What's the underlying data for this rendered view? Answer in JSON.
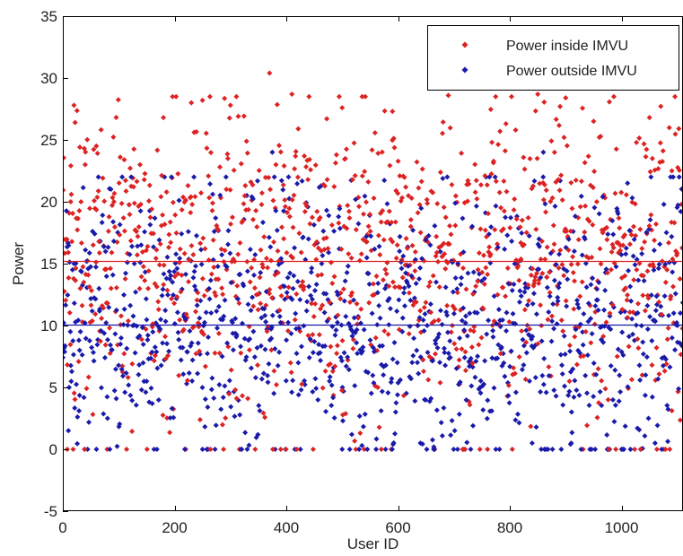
{
  "chart_data": {
    "type": "scatter",
    "title": "",
    "xlabel": "User ID",
    "ylabel": "Power",
    "xlim": [
      0,
      1110
    ],
    "ylim": [
      -5,
      35
    ],
    "xticks": [
      0,
      200,
      400,
      600,
      800,
      1000
    ],
    "yticks": [
      -5,
      0,
      5,
      10,
      15,
      20,
      25,
      30,
      35
    ],
    "grid": false,
    "legend_position": "top-right",
    "series": [
      {
        "name": "Power inside IMVU",
        "color": "#dd2222",
        "marker": "diamond",
        "n_points": 1110,
        "mean": 15.2,
        "approx_std": 6.0,
        "range": [
          0,
          30.5
        ],
        "sample_points": [
          [
            8,
            0
          ],
          [
            14,
            20
          ],
          [
            20,
            27.8
          ],
          [
            22,
            26.4
          ],
          [
            40,
            23
          ],
          [
            60,
            24.5
          ],
          [
            110,
            23.4
          ],
          [
            180,
            26.8
          ],
          [
            220,
            0
          ],
          [
            230,
            28
          ],
          [
            250,
            28.2
          ],
          [
            300,
            27.8
          ],
          [
            370,
            30.4
          ],
          [
            390,
            0
          ],
          [
            410,
            28.7
          ],
          [
            500,
            27.6
          ],
          [
            590,
            27.3
          ],
          [
            690,
            28.6
          ],
          [
            720,
            0
          ],
          [
            760,
            0
          ],
          [
            850,
            28.7
          ],
          [
            890,
            27.7
          ],
          [
            900,
            28.4
          ],
          [
            950,
            26.5
          ],
          [
            1050,
            26.8
          ],
          [
            1090,
            22.5
          ]
        ]
      },
      {
        "name": "Power outside IMVU",
        "color": "#1a1aaa",
        "marker": "diamond",
        "n_points": 1110,
        "mean": 10.1,
        "approx_std": 5.5,
        "range": [
          0,
          24
        ],
        "sample_points": [
          [
            10,
            1.5
          ],
          [
            20,
            15
          ],
          [
            30,
            8
          ],
          [
            80,
            2.5
          ],
          [
            150,
            5.5
          ],
          [
            260,
            0
          ],
          [
            330,
            0
          ],
          [
            375,
            24
          ],
          [
            500,
            0
          ],
          [
            545,
            0
          ],
          [
            640,
            0.5
          ],
          [
            665,
            0
          ],
          [
            730,
            0
          ],
          [
            775,
            0
          ],
          [
            840,
            0.5
          ],
          [
            860,
            24
          ],
          [
            910,
            0.5
          ],
          [
            1000,
            0
          ],
          [
            1060,
            0.5
          ],
          [
            1100,
            10
          ]
        ]
      }
    ],
    "reference_lines": [
      {
        "series": "Power inside IMVU",
        "y": 15.2,
        "color": "#dd2222"
      },
      {
        "series": "Power outside IMVU",
        "y": 10.1,
        "color": "#1a1aaa"
      }
    ]
  }
}
